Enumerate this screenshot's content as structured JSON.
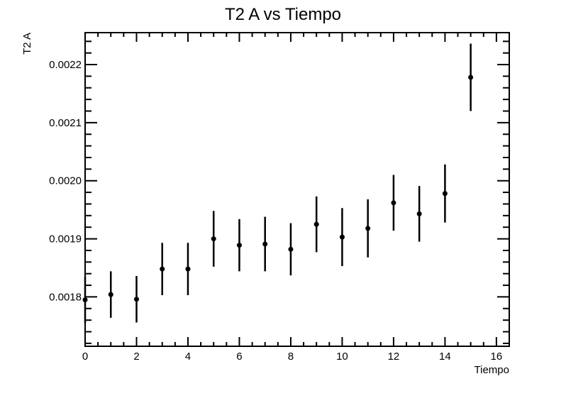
{
  "chart_data": {
    "type": "scatter",
    "title": "T2 A vs Tiempo",
    "xlabel": "Tiempo",
    "ylabel": "T2 A",
    "xlim": [
      0,
      16.5
    ],
    "ylim": [
      0.001715,
      0.002255
    ],
    "grid": false,
    "x_ticks": [
      0,
      2,
      4,
      6,
      8,
      10,
      12,
      14,
      16
    ],
    "y_ticks": [
      0.0018,
      0.0019,
      0.002,
      0.0021,
      0.0022
    ],
    "x_tick_labels": [
      "0",
      "2",
      "4",
      "6",
      "8",
      "10",
      "12",
      "14",
      "16"
    ],
    "y_tick_labels": [
      "0.0018",
      "0.0019",
      "0.0020",
      "0.0021",
      "0.0022"
    ],
    "series": [
      {
        "x": [
          0,
          1,
          2,
          3,
          4,
          5,
          6,
          7,
          8,
          9,
          10,
          11,
          12,
          13,
          14,
          15
        ],
        "y": [
          0.001795,
          0.001804,
          0.001796,
          0.001848,
          0.001848,
          0.0019,
          0.001889,
          0.001891,
          0.001882,
          0.001925,
          0.001903,
          0.001918,
          0.001962,
          0.001943,
          0.001978,
          0.002178
        ],
        "yerr": [
          4e-05,
          4e-05,
          4e-05,
          4.5e-05,
          4.5e-05,
          4.8e-05,
          4.5e-05,
          4.7e-05,
          4.5e-05,
          4.8e-05,
          5e-05,
          5e-05,
          4.8e-05,
          4.8e-05,
          5e-05,
          5.8e-05
        ]
      }
    ]
  }
}
